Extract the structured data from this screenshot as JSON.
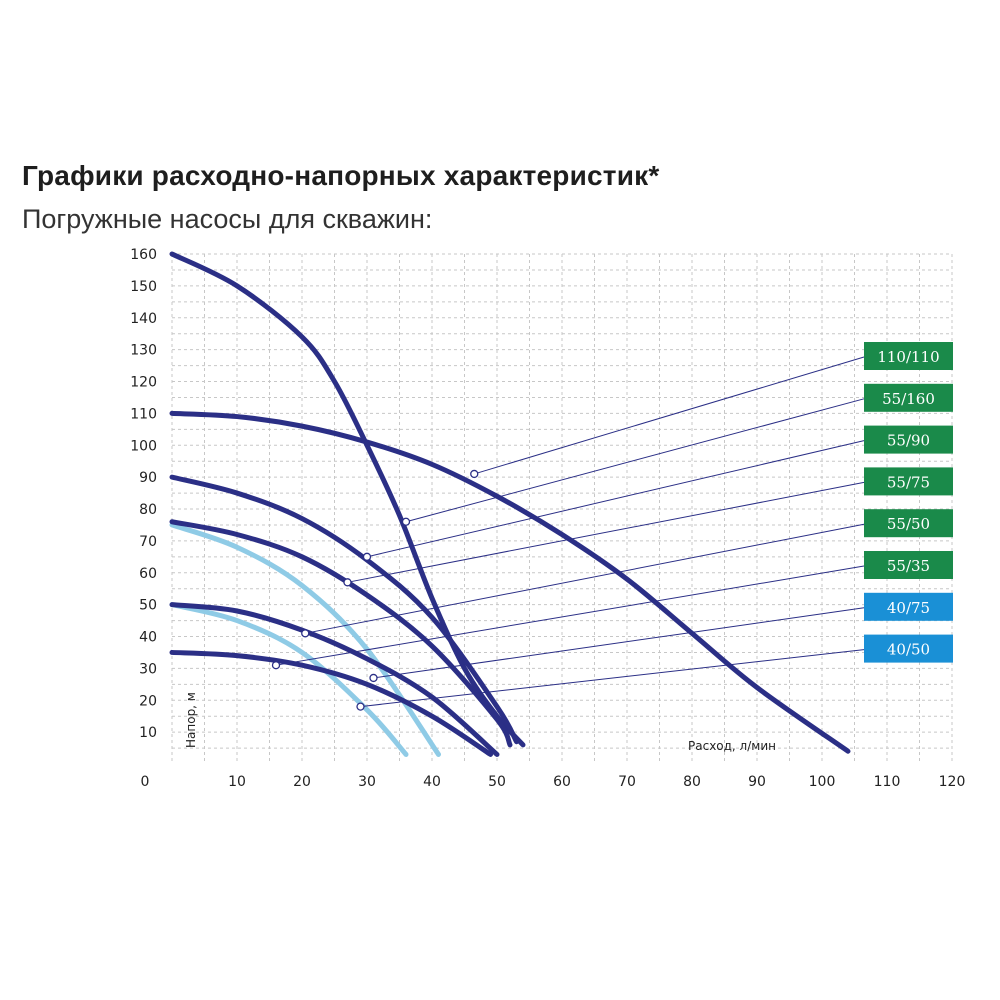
{
  "title": "Графики расходно-напорных характеристик*",
  "subtitle": "Погружные насосы для скважин:",
  "colors": {
    "dark": "#2b2f86",
    "light": "#8fcbe6",
    "green": "#1a8a4a",
    "blue": "#1a90d6",
    "grid": "#c7c7c7"
  },
  "chart_data": {
    "type": "line",
    "xlabel": "Расход, л/мин",
    "ylabel": "Напор, м",
    "xlim": [
      0,
      120
    ],
    "ylim": [
      0,
      160
    ],
    "x_ticks": [
      "0",
      "10",
      "20",
      "30",
      "40",
      "50",
      "60",
      "70",
      "80",
      "90",
      "100",
      "110",
      "120"
    ],
    "y_ticks": [
      "10",
      "20",
      "30",
      "40",
      "50",
      "60",
      "70",
      "80",
      "90",
      "100",
      "110",
      "120",
      "130",
      "140",
      "150",
      "160"
    ],
    "grid": true,
    "series": [
      {
        "name": "110/110",
        "badge": "green",
        "line": "dark",
        "x": [
          0,
          10,
          20,
          30,
          40,
          50,
          60,
          70,
          80,
          90,
          104
        ],
        "y": [
          110,
          109,
          106,
          101,
          94,
          84,
          72,
          58,
          41,
          24,
          4
        ]
      },
      {
        "name": "55/160",
        "badge": "green",
        "line": "dark",
        "x": [
          0,
          10,
          20,
          25,
          30,
          35,
          40,
          45,
          50,
          54
        ],
        "y": [
          160,
          150,
          134,
          120,
          100,
          78,
          52,
          30,
          15,
          6
        ]
      },
      {
        "name": "55/90",
        "badge": "green",
        "line": "dark",
        "x": [
          0,
          10,
          20,
          30,
          40,
          50,
          53
        ],
        "y": [
          90,
          85,
          77,
          64,
          46,
          18,
          7
        ]
      },
      {
        "name": "55/75",
        "badge": "green",
        "line": "dark",
        "x": [
          0,
          10,
          20,
          30,
          40,
          50,
          52
        ],
        "y": [
          76,
          72,
          65,
          53,
          37,
          14,
          6
        ]
      },
      {
        "name": "55/50",
        "badge": "green",
        "line": "dark",
        "x": [
          0,
          10,
          20,
          30,
          40,
          50
        ],
        "y": [
          50,
          48,
          42,
          33,
          21,
          3
        ]
      },
      {
        "name": "55/35",
        "badge": "green",
        "line": "dark",
        "x": [
          0,
          10,
          20,
          30,
          40,
          49
        ],
        "y": [
          35,
          34,
          31,
          25,
          15,
          3
        ]
      },
      {
        "name": "40/75",
        "badge": "blue",
        "line": "light",
        "x": [
          0,
          10,
          20,
          30,
          41
        ],
        "y": [
          75,
          68,
          56,
          36,
          3
        ]
      },
      {
        "name": "40/50",
        "badge": "blue",
        "line": "light",
        "x": [
          0,
          10,
          20,
          30,
          36
        ],
        "y": [
          50,
          45,
          35,
          17,
          3
        ]
      }
    ],
    "markers": [
      {
        "series": "110/110",
        "x": 46.5,
        "y": 91
      },
      {
        "series": "55/160",
        "x": 36,
        "y": 76
      },
      {
        "series": "55/90",
        "x": 30,
        "y": 65
      },
      {
        "series": "55/75",
        "x": 27,
        "y": 57
      },
      {
        "series": "55/50",
        "x": 20.5,
        "y": 41
      },
      {
        "series": "55/35",
        "x": 16,
        "y": 31
      },
      {
        "series": "40/75",
        "x": 31,
        "y": 27
      },
      {
        "series": "40/50",
        "x": 29,
        "y": 18
      }
    ]
  }
}
